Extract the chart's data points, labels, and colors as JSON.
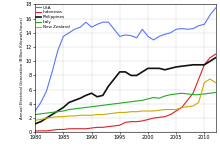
{
  "ylabel": "Annual Electrical Generation (Billion Kilowatt-hours)",
  "xlim": [
    1980,
    2012
  ],
  "ylim": [
    0,
    18
  ],
  "yticks": [
    0,
    2,
    4,
    6,
    8,
    10,
    12,
    14,
    16,
    18
  ],
  "xticks": [
    1980,
    1985,
    1990,
    1995,
    2000,
    2005,
    2010
  ],
  "legend": [
    "USA",
    "Indonesia",
    "Philippines",
    "Italy",
    "New Zealand"
  ],
  "colors": [
    "#5577ff",
    "#dd2222",
    "#111111",
    "#22aa22",
    "#ccaa00"
  ],
  "USA": [
    [
      1980,
      3.0
    ],
    [
      1981,
      4.2
    ],
    [
      1982,
      5.8
    ],
    [
      1983,
      8.5
    ],
    [
      1984,
      11.5
    ],
    [
      1985,
      13.5
    ],
    [
      1986,
      14.0
    ],
    [
      1987,
      14.5
    ],
    [
      1988,
      14.8
    ],
    [
      1989,
      15.5
    ],
    [
      1990,
      14.8
    ],
    [
      1991,
      15.2
    ],
    [
      1992,
      15.5
    ],
    [
      1993,
      15.5
    ],
    [
      1994,
      14.5
    ],
    [
      1995,
      13.5
    ],
    [
      1996,
      13.7
    ],
    [
      1997,
      13.6
    ],
    [
      1998,
      13.3
    ],
    [
      1999,
      14.5
    ],
    [
      2000,
      13.5
    ],
    [
      2001,
      13.0
    ],
    [
      2002,
      13.5
    ],
    [
      2003,
      13.8
    ],
    [
      2004,
      14.0
    ],
    [
      2005,
      14.5
    ],
    [
      2006,
      14.6
    ],
    [
      2007,
      14.5
    ],
    [
      2008,
      14.6
    ],
    [
      2009,
      15.0
    ],
    [
      2010,
      15.2
    ],
    [
      2011,
      16.5
    ],
    [
      2012,
      17.5
    ]
  ],
  "Indonesia": [
    [
      1980,
      0.2
    ],
    [
      1981,
      0.2
    ],
    [
      1982,
      0.2
    ],
    [
      1983,
      0.3
    ],
    [
      1984,
      0.4
    ],
    [
      1985,
      0.4
    ],
    [
      1986,
      0.5
    ],
    [
      1987,
      0.5
    ],
    [
      1988,
      0.5
    ],
    [
      1989,
      0.5
    ],
    [
      1990,
      0.6
    ],
    [
      1991,
      0.7
    ],
    [
      1992,
      0.7
    ],
    [
      1993,
      0.8
    ],
    [
      1994,
      0.9
    ],
    [
      1995,
      1.0
    ],
    [
      1996,
      1.4
    ],
    [
      1997,
      1.5
    ],
    [
      1998,
      1.5
    ],
    [
      1999,
      1.6
    ],
    [
      2000,
      1.8
    ],
    [
      2001,
      2.0
    ],
    [
      2002,
      2.1
    ],
    [
      2003,
      2.2
    ],
    [
      2004,
      2.5
    ],
    [
      2005,
      3.0
    ],
    [
      2006,
      3.5
    ],
    [
      2007,
      4.5
    ],
    [
      2008,
      5.5
    ],
    [
      2009,
      7.5
    ],
    [
      2010,
      9.5
    ],
    [
      2011,
      10.5
    ],
    [
      2012,
      11.0
    ]
  ],
  "Philippines": [
    [
      1980,
      1.2
    ],
    [
      1981,
      1.5
    ],
    [
      1982,
      2.0
    ],
    [
      1983,
      2.5
    ],
    [
      1984,
      3.0
    ],
    [
      1985,
      3.5
    ],
    [
      1986,
      4.2
    ],
    [
      1987,
      4.5
    ],
    [
      1988,
      4.8
    ],
    [
      1989,
      5.2
    ],
    [
      1990,
      5.5
    ],
    [
      1991,
      5.0
    ],
    [
      1992,
      5.2
    ],
    [
      1993,
      6.5
    ],
    [
      1994,
      7.5
    ],
    [
      1995,
      8.5
    ],
    [
      1996,
      8.5
    ],
    [
      1997,
      8.0
    ],
    [
      1998,
      8.0
    ],
    [
      1999,
      8.5
    ],
    [
      2000,
      9.0
    ],
    [
      2001,
      9.0
    ],
    [
      2002,
      9.0
    ],
    [
      2003,
      8.8
    ],
    [
      2004,
      9.0
    ],
    [
      2005,
      9.2
    ],
    [
      2006,
      9.3
    ],
    [
      2007,
      9.4
    ],
    [
      2008,
      9.5
    ],
    [
      2009,
      9.5
    ],
    [
      2010,
      9.5
    ],
    [
      2011,
      10.0
    ],
    [
      2012,
      10.5
    ]
  ],
  "Italy": [
    [
      1980,
      2.5
    ],
    [
      1981,
      2.6
    ],
    [
      1982,
      2.7
    ],
    [
      1983,
      2.8
    ],
    [
      1984,
      2.9
    ],
    [
      1985,
      3.0
    ],
    [
      1986,
      3.2
    ],
    [
      1987,
      3.3
    ],
    [
      1988,
      3.4
    ],
    [
      1989,
      3.5
    ],
    [
      1990,
      3.6
    ],
    [
      1991,
      3.7
    ],
    [
      1992,
      3.8
    ],
    [
      1993,
      3.9
    ],
    [
      1994,
      4.0
    ],
    [
      1995,
      4.1
    ],
    [
      1996,
      4.2
    ],
    [
      1997,
      4.3
    ],
    [
      1998,
      4.4
    ],
    [
      1999,
      4.5
    ],
    [
      2000,
      4.7
    ],
    [
      2001,
      4.9
    ],
    [
      2002,
      4.8
    ],
    [
      2003,
      5.1
    ],
    [
      2004,
      5.3
    ],
    [
      2005,
      5.4
    ],
    [
      2006,
      5.5
    ],
    [
      2007,
      5.4
    ],
    [
      2008,
      5.3
    ],
    [
      2009,
      5.3
    ],
    [
      2010,
      5.4
    ],
    [
      2011,
      5.5
    ],
    [
      2012,
      5.6
    ]
  ],
  "New Zealand": [
    [
      1980,
      1.7
    ],
    [
      1981,
      1.8
    ],
    [
      1982,
      2.0
    ],
    [
      1983,
      2.1
    ],
    [
      1984,
      2.2
    ],
    [
      1985,
      2.2
    ],
    [
      1986,
      2.3
    ],
    [
      1987,
      2.3
    ],
    [
      1988,
      2.4
    ],
    [
      1989,
      2.4
    ],
    [
      1990,
      2.4
    ],
    [
      1991,
      2.5
    ],
    [
      1992,
      2.5
    ],
    [
      1993,
      2.6
    ],
    [
      1994,
      2.7
    ],
    [
      1995,
      2.8
    ],
    [
      1996,
      2.8
    ],
    [
      1997,
      2.9
    ],
    [
      1998,
      2.9
    ],
    [
      1999,
      3.0
    ],
    [
      2000,
      3.0
    ],
    [
      2001,
      3.0
    ],
    [
      2002,
      3.1
    ],
    [
      2003,
      3.2
    ],
    [
      2004,
      3.2
    ],
    [
      2005,
      3.2
    ],
    [
      2006,
      3.5
    ],
    [
      2007,
      3.6
    ],
    [
      2008,
      3.7
    ],
    [
      2009,
      4.2
    ],
    [
      2010,
      7.0
    ],
    [
      2011,
      7.5
    ],
    [
      2012,
      7.0
    ]
  ]
}
